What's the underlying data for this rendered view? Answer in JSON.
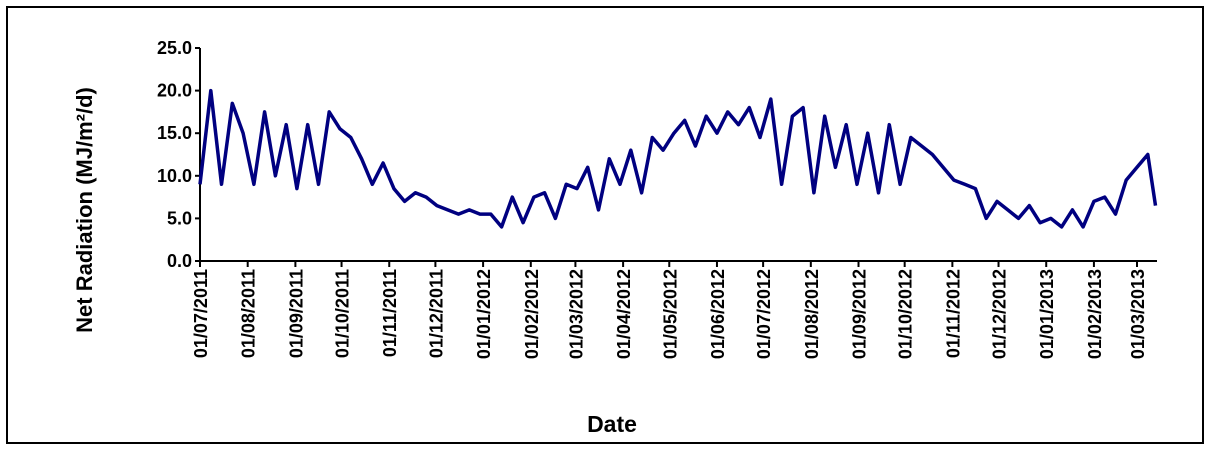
{
  "chart_data": {
    "type": "line",
    "x_label": "Date",
    "y_label": "Net  Radiation (MJ/m²/d)",
    "x": [
      "2011-07-01",
      "2011-07-08",
      "2011-07-15",
      "2011-07-22",
      "2011-07-29",
      "2011-08-05",
      "2011-08-12",
      "2011-08-19",
      "2011-08-26",
      "2011-09-02",
      "2011-09-09",
      "2011-09-16",
      "2011-09-23",
      "2011-09-30",
      "2011-10-07",
      "2011-10-14",
      "2011-10-21",
      "2011-10-28",
      "2011-11-04",
      "2011-11-11",
      "2011-11-18",
      "2011-11-25",
      "2011-12-02",
      "2011-12-09",
      "2011-12-16",
      "2011-12-23",
      "2011-12-30",
      "2012-01-06",
      "2012-01-13",
      "2012-01-20",
      "2012-01-27",
      "2012-02-03",
      "2012-02-10",
      "2012-02-17",
      "2012-02-24",
      "2012-03-02",
      "2012-03-09",
      "2012-03-16",
      "2012-03-23",
      "2012-03-30",
      "2012-04-06",
      "2012-04-13",
      "2012-04-20",
      "2012-04-27",
      "2012-05-04",
      "2012-05-11",
      "2012-05-18",
      "2012-05-25",
      "2012-06-01",
      "2012-06-08",
      "2012-06-15",
      "2012-06-22",
      "2012-06-29",
      "2012-07-06",
      "2012-07-13",
      "2012-07-20",
      "2012-07-27",
      "2012-08-03",
      "2012-08-10",
      "2012-08-17",
      "2012-08-24",
      "2012-08-31",
      "2012-09-07",
      "2012-09-14",
      "2012-09-21",
      "2012-09-28",
      "2012-10-05",
      "2012-10-12",
      "2012-10-19",
      "2012-10-26",
      "2012-11-02",
      "2012-11-09",
      "2012-11-16",
      "2012-11-23",
      "2012-11-30",
      "2012-12-07",
      "2012-12-14",
      "2012-12-21",
      "2012-12-28",
      "2013-01-04",
      "2013-01-11",
      "2013-01-18",
      "2013-01-25",
      "2013-02-01",
      "2013-02-08",
      "2013-02-15",
      "2013-02-22",
      "2013-03-01",
      "2013-03-08",
      "2013-03-13"
    ],
    "series": [
      {
        "name": "Net Radiation",
        "color": "#000080",
        "values": [
          9,
          20,
          9,
          18.5,
          15,
          9,
          17.5,
          10,
          16,
          8.5,
          16,
          9,
          17.5,
          15.5,
          14.5,
          12,
          9,
          11.5,
          8.5,
          7,
          8,
          7.5,
          6.5,
          6,
          5.5,
          6,
          5.5,
          5.5,
          4,
          7.5,
          4.5,
          7.5,
          8,
          5,
          9,
          8.5,
          11,
          6,
          12,
          9,
          13,
          8,
          14.5,
          13,
          15,
          16.5,
          13.5,
          17,
          15,
          17.5,
          16,
          18,
          14.5,
          19,
          9,
          17,
          18,
          8,
          17,
          11,
          16,
          9,
          15,
          8,
          16,
          9,
          14.5,
          13.5,
          12.5,
          11,
          9.5,
          9,
          8.5,
          5,
          7,
          6,
          5,
          6.5,
          4.5,
          5,
          4,
          6,
          4,
          7,
          7.5,
          5.5,
          9.5,
          11,
          12.5,
          6.5
        ]
      }
    ],
    "xlim": [
      "2011-07-01",
      "2013-03-14"
    ],
    "xticks": [
      {
        "value": "2011-07-01",
        "label": "01/07/2011"
      },
      {
        "value": "2011-08-01",
        "label": "01/08/2011"
      },
      {
        "value": "2011-09-01",
        "label": "01/09/2011"
      },
      {
        "value": "2011-10-01",
        "label": "01/10/2011"
      },
      {
        "value": "2011-11-01",
        "label": "01/11/2011"
      },
      {
        "value": "2011-12-01",
        "label": "01/12/2011"
      },
      {
        "value": "2012-01-01",
        "label": "01/01/2012"
      },
      {
        "value": "2012-02-01",
        "label": "01/02/2012"
      },
      {
        "value": "2012-03-01",
        "label": "01/03/2012"
      },
      {
        "value": "2012-04-01",
        "label": "01/04/2012"
      },
      {
        "value": "2012-05-01",
        "label": "01/05/2012"
      },
      {
        "value": "2012-06-01",
        "label": "01/06/2012"
      },
      {
        "value": "2012-07-01",
        "label": "01/07/2012"
      },
      {
        "value": "2012-08-01",
        "label": "01/08/2012"
      },
      {
        "value": "2012-09-01",
        "label": "01/09/2012"
      },
      {
        "value": "2012-10-01",
        "label": "01/10/2012"
      },
      {
        "value": "2012-11-01",
        "label": "01/11/2012"
      },
      {
        "value": "2012-12-01",
        "label": "01/12/2012"
      },
      {
        "value": "2013-01-01",
        "label": "01/01/2013"
      },
      {
        "value": "2013-02-01",
        "label": "01/02/2013"
      },
      {
        "value": "2013-03-01",
        "label": "01/03/2013"
      }
    ],
    "ylim": [
      0,
      25
    ],
    "yticks": [
      {
        "value": 0,
        "label": "0.0"
      },
      {
        "value": 5,
        "label": "5.0"
      },
      {
        "value": 10,
        "label": "10.0"
      },
      {
        "value": 15,
        "label": "15.0"
      },
      {
        "value": 20,
        "label": "20.0"
      },
      {
        "value": 25,
        "label": "25.0"
      }
    ],
    "grid": false
  }
}
